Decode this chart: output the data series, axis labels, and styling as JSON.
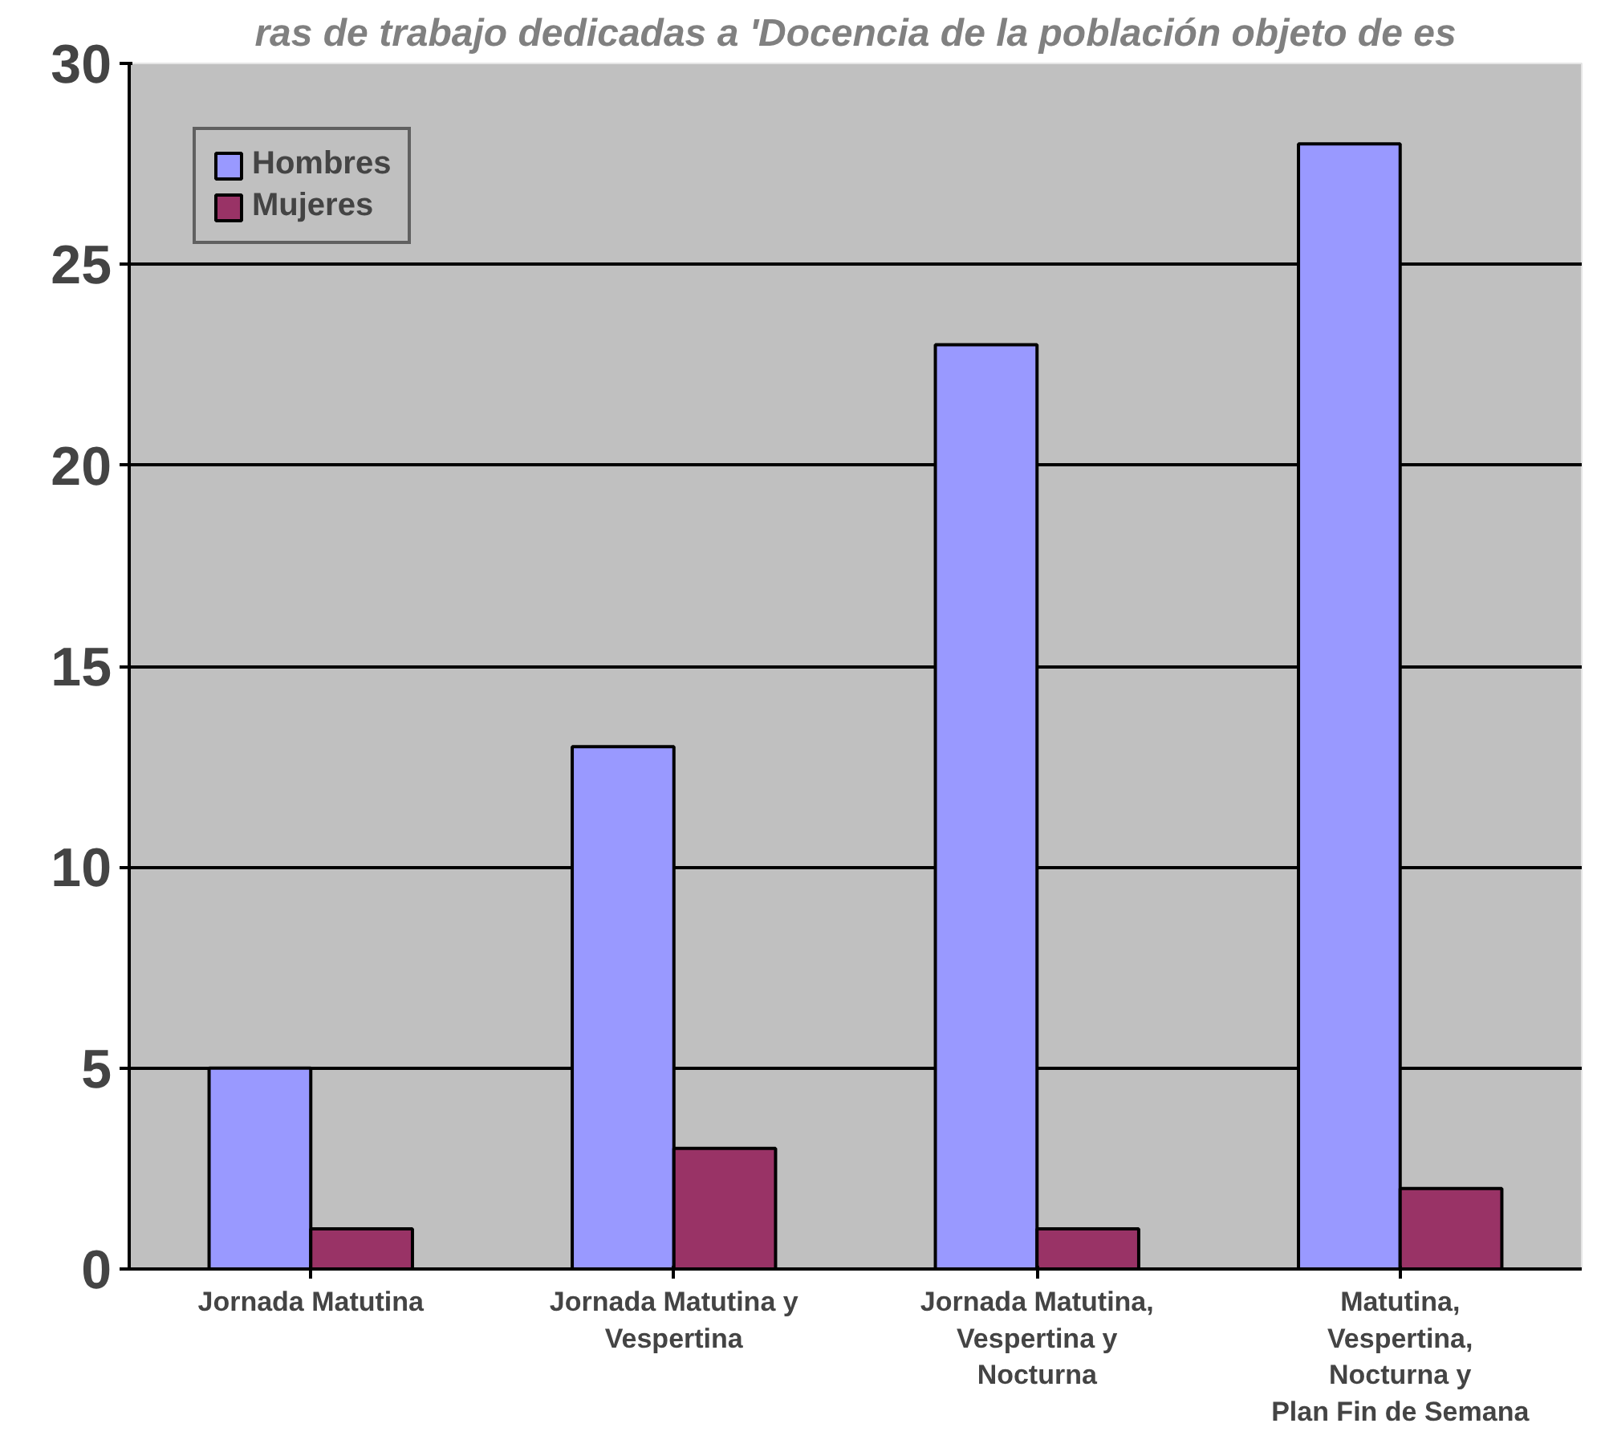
{
  "chart_data": {
    "type": "bar",
    "title": "ras de trabajo dedicadas a 'Docencia de la población objeto de es",
    "categories": [
      "Jornada Matutina",
      "Jornada Matutina y Vespertina",
      "Jornada Matutina, Vespertina y Nocturna",
      "Matutina, Vespertina, Nocturna y Plan Fin de Semana"
    ],
    "series": [
      {
        "name": "Hombres",
        "color": "#9999ff",
        "values": [
          5,
          13,
          23,
          28
        ]
      },
      {
        "name": "Mujeres",
        "color": "#993366",
        "values": [
          1,
          3,
          1,
          2
        ]
      }
    ],
    "ylim": [
      0,
      30
    ],
    "yticks": [
      0,
      5,
      10,
      15,
      20,
      25,
      30
    ],
    "grid": "y",
    "legend": "top left"
  }
}
